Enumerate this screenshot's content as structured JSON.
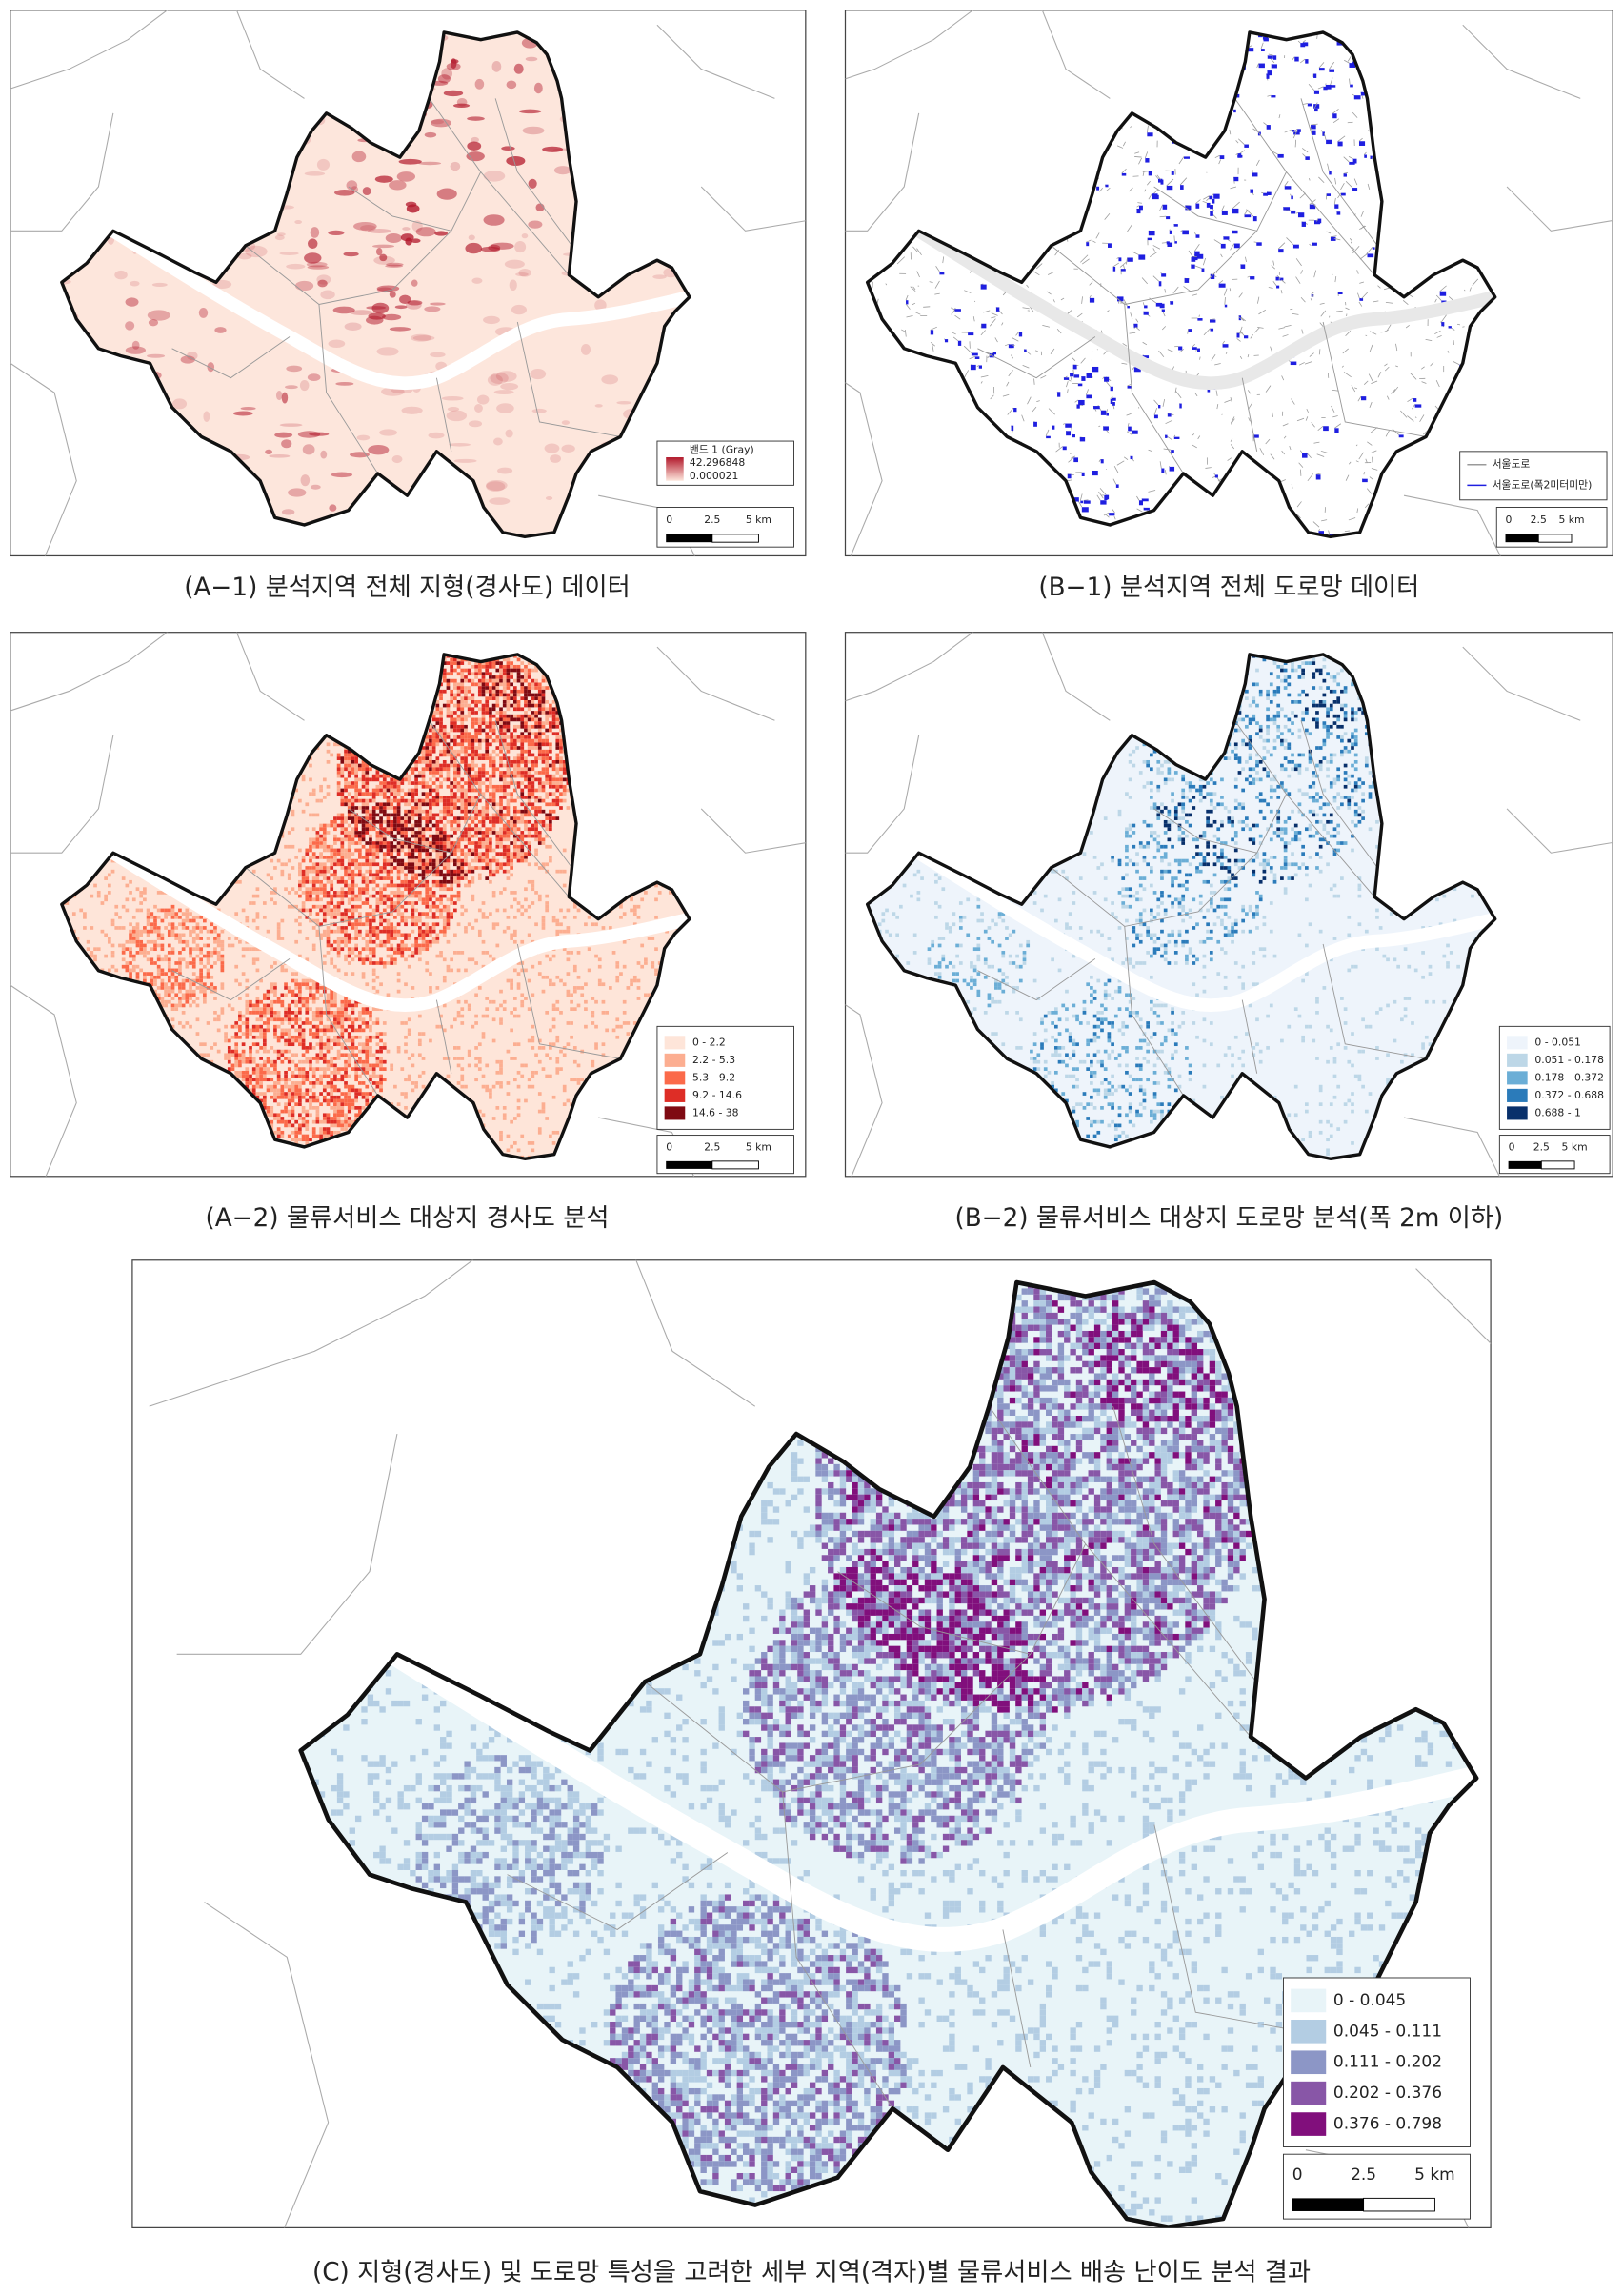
{
  "panels": [
    {
      "caption": "(A−1) 분석지역 전체 지형(경사도) 데이터",
      "legend": {
        "title": "밴드 1 (Gray)",
        "items": [
          {
            "label": "42.296848",
            "color": "#b2182b"
          },
          {
            "label": "0.000021",
            "color": "#fde6dc"
          }
        ]
      },
      "scalebar": [
        "0",
        "2.5",
        "5 km"
      ]
    },
    {
      "caption": "(B−1) 분석지역 전체 도로망 데이터",
      "legend": {
        "items": [
          {
            "label": "서울도로",
            "color": "#9a9a9a"
          },
          {
            "label": "서울도로(폭2미터미만)",
            "color": "#1f1fe0"
          }
        ]
      },
      "scalebar": [
        "0",
        "2.5",
        "5 km"
      ]
    },
    {
      "caption": "(A−2) 물류서비스 대상지 경사도 분석",
      "legend": {
        "items": [
          {
            "label": "0 - 2.2",
            "color": "#fee5d9"
          },
          {
            "label": "2.2 - 5.3",
            "color": "#fcae91"
          },
          {
            "label": "5.3 - 9.2",
            "color": "#fb6a4a"
          },
          {
            "label": "9.2 - 14.6",
            "color": "#de2d26"
          },
          {
            "label": "14.6 - 38",
            "color": "#7f0a12"
          }
        ]
      },
      "scalebar": [
        "0",
        "2.5",
        "5 km"
      ]
    },
    {
      "caption": "(B−2) 물류서비스 대상지 도로망 분석(폭 2m 이하)",
      "legend": {
        "items": [
          {
            "label": "0 - 0.051",
            "color": "#eef4fb"
          },
          {
            "label": "0.051 - 0.178",
            "color": "#bdd7e7"
          },
          {
            "label": "0.178 - 0.372",
            "color": "#6baed6"
          },
          {
            "label": "0.372 - 0.688",
            "color": "#2b7bba"
          },
          {
            "label": "0.688 - 1",
            "color": "#08306b"
          }
        ]
      },
      "scalebar": [
        "0",
        "2.5",
        "5 km"
      ]
    },
    {
      "caption": "(C) 지형(경사도) 및 도로망 특성을 고려한 세부 지역(격자)별 물류서비스 배송 난이도 분석 결과",
      "legend": {
        "items": [
          {
            "label": "0 - 0.045",
            "color": "#e8f4f8"
          },
          {
            "label": "0.045 - 0.111",
            "color": "#b3cde3"
          },
          {
            "label": "0.111 - 0.202",
            "color": "#8c96c6"
          },
          {
            "label": "0.202 - 0.376",
            "color": "#8856a7"
          },
          {
            "label": "0.376 - 0.798",
            "color": "#810f7c"
          }
        ]
      },
      "scalebar": [
        "0",
        "2.5",
        "5 km"
      ]
    }
  ]
}
